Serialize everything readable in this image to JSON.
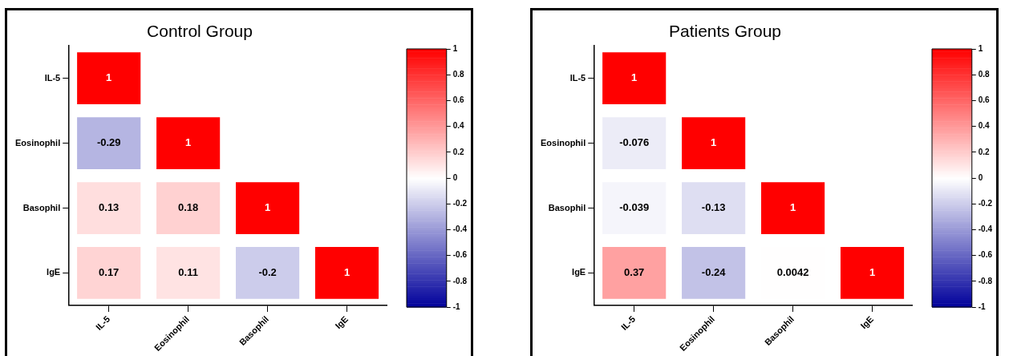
{
  "chart_data": [
    {
      "type": "heatmap",
      "title": "Control Group",
      "categories": [
        "IL-5",
        "Eosinophil",
        "Basophil",
        "IgE"
      ],
      "y_categories": [
        "IL-5",
        "Eosinophil",
        "Basophil",
        "IgE"
      ],
      "cells": [
        [
          1,
          null,
          null,
          null
        ],
        [
          -0.29,
          1,
          null,
          null
        ],
        [
          0.13,
          0.18,
          1,
          null
        ],
        [
          0.17,
          0.11,
          -0.2,
          1
        ]
      ],
      "clim": [
        -1,
        1
      ],
      "cticks": [
        -1,
        -0.8,
        -0.6,
        -0.4,
        -0.2,
        0,
        0.2,
        0.4,
        0.6,
        0.8,
        1
      ],
      "data_labels": true
    },
    {
      "type": "heatmap",
      "title": "Patients Group",
      "categories": [
        "IL-5",
        "Eosinophil",
        "Basophil",
        "IgE"
      ],
      "y_categories": [
        "IL-5",
        "Eosinophil",
        "Basophil",
        "IgE"
      ],
      "cells": [
        [
          1,
          null,
          null,
          null
        ],
        [
          -0.076,
          1,
          null,
          null
        ],
        [
          -0.039,
          -0.13,
          1,
          null
        ],
        [
          0.37,
          -0.24,
          0.0042,
          1
        ]
      ],
      "clim": [
        -1,
        1
      ],
      "cticks": [
        -1,
        -0.8,
        -0.6,
        -0.4,
        -0.2,
        0,
        0.2,
        0.4,
        0.6,
        0.8,
        1
      ],
      "data_labels": true
    }
  ]
}
